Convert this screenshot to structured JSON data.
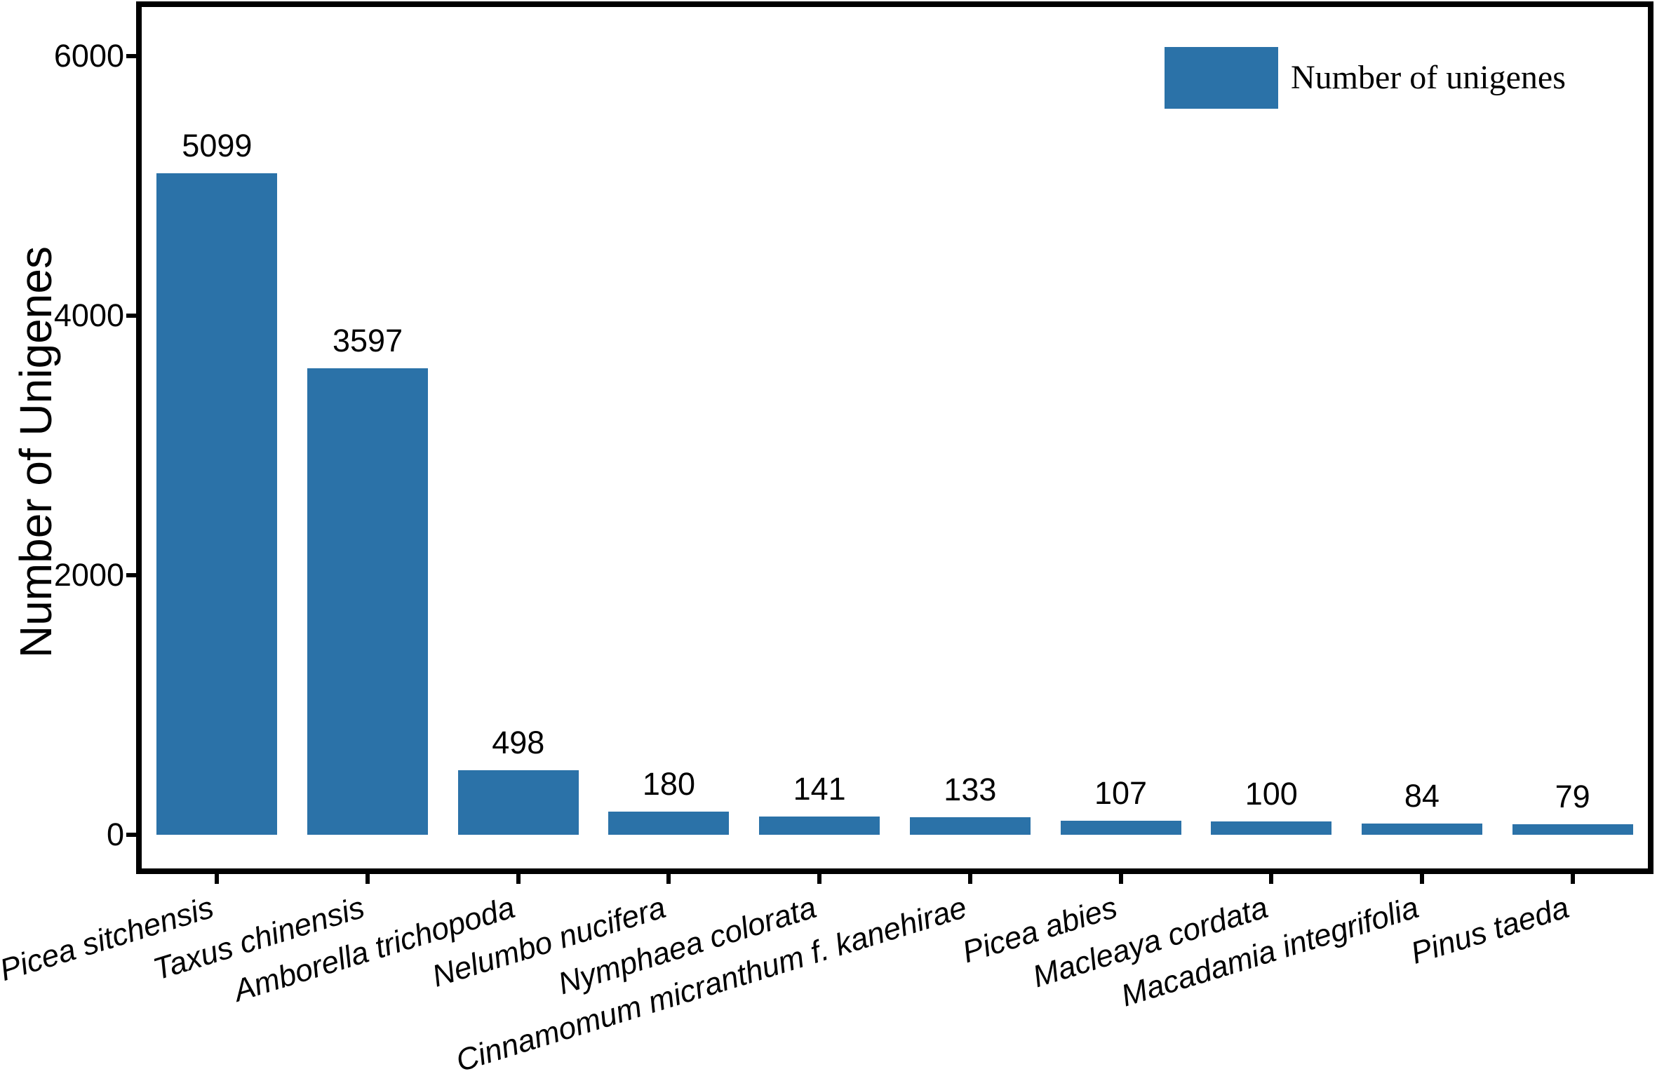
{
  "figure": {
    "background_color": "#ffffff",
    "frame_color": "#000000",
    "text_color": "#000000"
  },
  "chart_data": {
    "type": "bar",
    "title": "",
    "categories": [
      "Picea sitchensis",
      "Taxus chinensis",
      "Amborella trichopoda",
      "Nelumbo nucifera",
      "Nymphaea colorata",
      "Cinnamomum micranthum f. kanehirae",
      "Picea abies",
      "Macleaya cordata",
      "Macadamia integrifolia",
      "Pinus taeda"
    ],
    "values": [
      5099,
      3597,
      498,
      180,
      141,
      133,
      107,
      100,
      84,
      79
    ],
    "bar_value_labels": [
      "5099",
      "3597",
      "498",
      "180",
      "141",
      "133",
      "107",
      "100",
      "84",
      "79"
    ],
    "xlabel": "",
    "ylabel": "Number of Unigenes",
    "yticks": [
      0,
      2000,
      4000,
      6000
    ],
    "ytick_labels": [
      "0",
      "2000",
      "4000",
      "6000"
    ],
    "ylim": [
      -260,
      6380
    ],
    "grid": false,
    "bar_color": "#2b72a8",
    "x_tick_label_style": {
      "italic": true,
      "rotation_deg": 17
    },
    "legend": {
      "label": "Number of unigenes",
      "position": "upper right",
      "swatch_color": "#2b72a8"
    }
  }
}
